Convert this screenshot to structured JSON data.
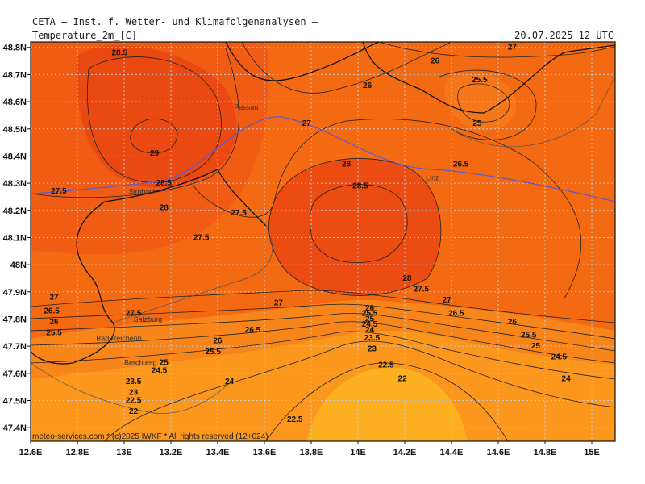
{
  "header": {
    "institute": "CETA — Inst. f. Wetter- und Klimafolgenanalysen —",
    "field": "Temperature_2m_[C]",
    "valid": "20.07.2025 12 UTC"
  },
  "footer": {
    "copyright": "meteo-services.com * (c)2025 IWKF * All rights reserved (12+024)"
  },
  "map": {
    "lon_range": [
      12.6,
      15.1
    ],
    "lat_range": [
      47.35,
      48.82
    ],
    "lon_ticks": [
      "12.6E",
      "12.8E",
      "13E",
      "13.2E",
      "13.4E",
      "13.6E",
      "13.8E",
      "14E",
      "14.2E",
      "14.4E",
      "14.6E",
      "14.8E",
      "15E"
    ],
    "lat_ticks": [
      "48.8N",
      "48.7N",
      "48.6N",
      "48.5N",
      "48.4N",
      "48.3N",
      "48.2N",
      "48.1N",
      "48N",
      "47.9N",
      "47.8N",
      "47.7N",
      "47.6N",
      "47.5N",
      "47.4N"
    ],
    "cities": [
      {
        "name": "Passau",
        "lon": 13.47,
        "lat": 48.57
      },
      {
        "name": "Simbach",
        "lon": 13.02,
        "lat": 48.26
      },
      {
        "name": "Linz",
        "lon": 14.29,
        "lat": 48.31
      },
      {
        "name": "Salzburg",
        "lon": 13.04,
        "lat": 47.79
      },
      {
        "name": "Bad Reichenh.",
        "lon": 12.88,
        "lat": 47.72
      },
      {
        "name": "Berchtesg.",
        "lon": 13.0,
        "lat": 47.63
      }
    ],
    "contour_labels": [
      {
        "v": "28.5",
        "lon": 12.98,
        "lat": 48.78
      },
      {
        "v": "29",
        "lon": 13.13,
        "lat": 48.41
      },
      {
        "v": "28.5",
        "lon": 13.17,
        "lat": 48.3
      },
      {
        "v": "28",
        "lon": 13.17,
        "lat": 48.21
      },
      {
        "v": "27.5",
        "lon": 12.72,
        "lat": 48.27
      },
      {
        "v": "27.5",
        "lon": 13.49,
        "lat": 48.19
      },
      {
        "v": "27.5",
        "lon": 13.33,
        "lat": 48.1
      },
      {
        "v": "27",
        "lon": 13.78,
        "lat": 48.52
      },
      {
        "v": "26",
        "lon": 14.04,
        "lat": 48.66
      },
      {
        "v": "26",
        "lon": 14.33,
        "lat": 48.75
      },
      {
        "v": "27",
        "lon": 14.66,
        "lat": 48.8
      },
      {
        "v": "25.5",
        "lon": 14.52,
        "lat": 48.68
      },
      {
        "v": "25",
        "lon": 14.51,
        "lat": 48.52
      },
      {
        "v": "26.5",
        "lon": 14.44,
        "lat": 48.37
      },
      {
        "v": "28",
        "lon": 13.95,
        "lat": 48.37
      },
      {
        "v": "28.5",
        "lon": 14.01,
        "lat": 48.29
      },
      {
        "v": "28",
        "lon": 14.21,
        "lat": 47.95
      },
      {
        "v": "27.5",
        "lon": 14.27,
        "lat": 47.91
      },
      {
        "v": "27",
        "lon": 14.38,
        "lat": 47.87
      },
      {
        "v": "26.5",
        "lon": 14.42,
        "lat": 47.82
      },
      {
        "v": "26",
        "lon": 14.66,
        "lat": 47.79
      },
      {
        "v": "25.5",
        "lon": 14.73,
        "lat": 47.74
      },
      {
        "v": "25",
        "lon": 14.76,
        "lat": 47.7
      },
      {
        "v": "24.5",
        "lon": 14.86,
        "lat": 47.66
      },
      {
        "v": "24",
        "lon": 14.89,
        "lat": 47.58
      },
      {
        "v": "27",
        "lon": 12.7,
        "lat": 47.88
      },
      {
        "v": "26.5",
        "lon": 12.69,
        "lat": 47.83
      },
      {
        "v": "26",
        "lon": 12.7,
        "lat": 47.79
      },
      {
        "v": "25.5",
        "lon": 12.7,
        "lat": 47.75
      },
      {
        "v": "27.5",
        "lon": 13.04,
        "lat": 47.82
      },
      {
        "v": "27",
        "lon": 13.66,
        "lat": 47.86
      },
      {
        "v": "26.5",
        "lon": 13.55,
        "lat": 47.76
      },
      {
        "v": "26",
        "lon": 13.4,
        "lat": 47.72
      },
      {
        "v": "25.5",
        "lon": 13.38,
        "lat": 47.68
      },
      {
        "v": "25",
        "lon": 13.17,
        "lat": 47.64
      },
      {
        "v": "24.5",
        "lon": 13.15,
        "lat": 47.61
      },
      {
        "v": "24",
        "lon": 13.45,
        "lat": 47.57
      },
      {
        "v": "23.5",
        "lon": 13.04,
        "lat": 47.57
      },
      {
        "v": "23",
        "lon": 13.04,
        "lat": 47.53
      },
      {
        "v": "22.5",
        "lon": 13.04,
        "lat": 47.5
      },
      {
        "v": "22",
        "lon": 13.04,
        "lat": 47.46
      },
      {
        "v": "22.5",
        "lon": 13.73,
        "lat": 47.43
      },
      {
        "v": "22",
        "lon": 14.19,
        "lat": 47.58
      },
      {
        "v": "22.5",
        "lon": 14.12,
        "lat": 47.63
      },
      {
        "v": "23",
        "lon": 14.06,
        "lat": 47.69
      },
      {
        "v": "23.5",
        "lon": 14.06,
        "lat": 47.73
      },
      {
        "v": "24",
        "lon": 14.05,
        "lat": 47.76
      },
      {
        "v": "24.5",
        "lon": 14.05,
        "lat": 47.78
      },
      {
        "v": "25",
        "lon": 14.05,
        "lat": 47.8
      },
      {
        "v": "25.5",
        "lon": 14.05,
        "lat": 47.82
      },
      {
        "v": "26",
        "lon": 14.05,
        "lat": 47.84
      }
    ]
  },
  "colors": {
    "hot": "#ee4a14",
    "warm": "#f46a12",
    "mild": "#f7851a",
    "cool": "#fb9a1c",
    "coolest": "#fdb01f",
    "grid": "#c8c8c8",
    "river": "#6a6acb"
  }
}
